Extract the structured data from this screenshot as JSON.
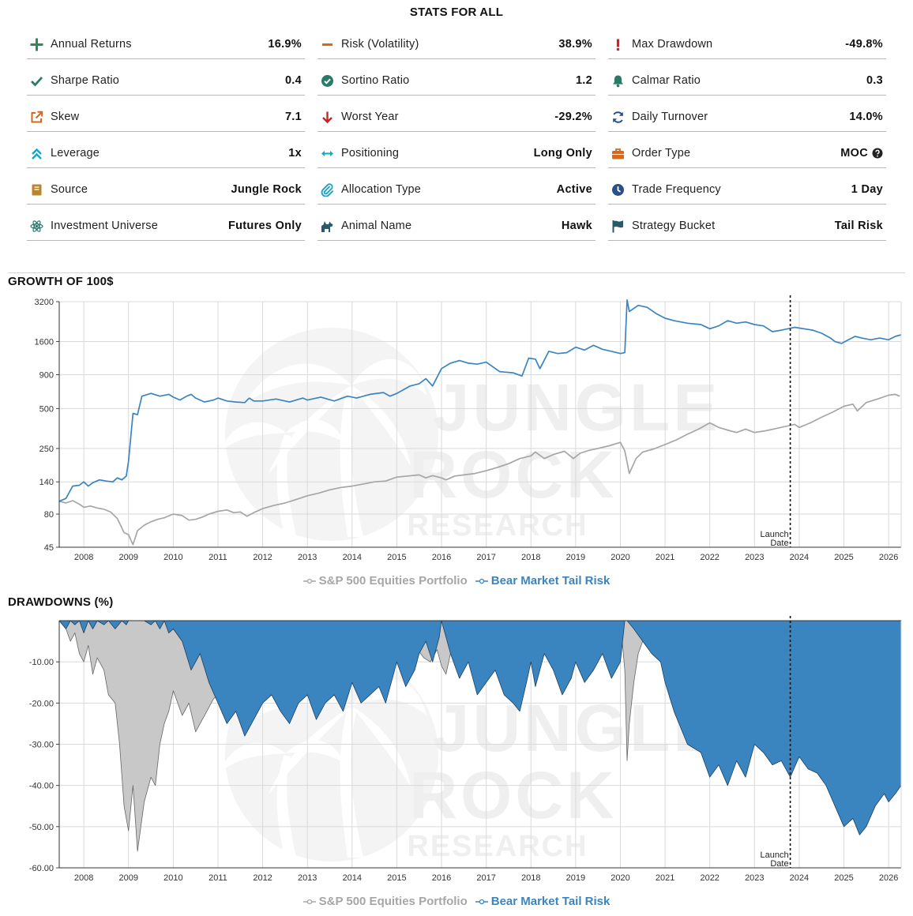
{
  "stats_title": "STATS FOR ALL",
  "stats": [
    {
      "label": "Annual Returns",
      "value": "16.9%",
      "icon": "plus-icon",
      "color": "#2e8b57"
    },
    {
      "label": "Risk (Volatility)",
      "value": "38.9%",
      "icon": "minus-icon",
      "color": "#d2691e"
    },
    {
      "label": "Max Drawdown",
      "value": "-49.8%",
      "icon": "exclamation-icon",
      "color": "#cc2222"
    },
    {
      "label": "Sharpe Ratio",
      "value": "0.4",
      "icon": "checkmark-icon",
      "color": "#2a7a6a"
    },
    {
      "label": "Sortino Ratio",
      "value": "1.2",
      "icon": "check-circle-icon",
      "color": "#2a7a6a"
    },
    {
      "label": "Calmar Ratio",
      "value": "0.3",
      "icon": "bell-icon",
      "color": "#2a7a6a"
    },
    {
      "label": "Skew",
      "value": "7.1",
      "icon": "external-link-icon",
      "color": "#d2691e"
    },
    {
      "label": "Worst Year",
      "value": "-29.2%",
      "icon": "arrow-down-icon",
      "color": "#cc2222"
    },
    {
      "label": "Daily Turnover",
      "value": "14.0%",
      "icon": "refresh-icon",
      "color": "#2b4d8a"
    },
    {
      "label": "Leverage",
      "value": "1x",
      "icon": "double-chevron-up-icon",
      "color": "#1aa3c8"
    },
    {
      "label": "Positioning",
      "value": "Long Only",
      "icon": "horizontal-arrows-icon",
      "color": "#1aa3c8"
    },
    {
      "label": "Order Type",
      "value": "MOC",
      "icon": "briefcase-icon",
      "color": "#d2691e",
      "help": true
    },
    {
      "label": "Source",
      "value": "Jungle Rock",
      "icon": "book-icon",
      "color": "#b8862b"
    },
    {
      "label": "Allocation Type",
      "value": "Active",
      "icon": "paperclip-icon",
      "color": "#1aa3c8"
    },
    {
      "label": "Trade Frequency",
      "value": "1 Day",
      "icon": "clock-icon",
      "color": "#2b4d8a"
    },
    {
      "label": "Investment Universe",
      "value": "Futures Only",
      "icon": "atom-icon",
      "color": "#2a7a6a"
    },
    {
      "label": "Animal Name",
      "value": "Hawk",
      "icon": "animal-icon",
      "color": "#2a5a6a"
    },
    {
      "label": "Strategy Bucket",
      "value": "Tail Risk",
      "icon": "flag-icon",
      "color": "#2a5a6a"
    }
  ],
  "colors": {
    "benchmark": "#a6a6a6",
    "strategy": "#3a85c0",
    "benchmark_fill": "#c8c8c8",
    "strategy_fill": "#3a85c0"
  },
  "watermark": {
    "line1": "JUNGLE",
    "line2": "ROCK",
    "line3": "RESEARCH"
  },
  "chart_data": [
    {
      "type": "line",
      "title": "GROWTH OF 100$",
      "yscale": "log",
      "ylim": [
        45,
        3200
      ],
      "yticks": [
        45,
        80,
        140,
        250,
        500,
        900,
        1600,
        3200
      ],
      "xlim": [
        2007.45,
        2026.28
      ],
      "xticks": [
        "2008",
        "2009",
        "2010",
        "2011",
        "2012",
        "2013",
        "2014",
        "2015",
        "2016",
        "2017",
        "2018",
        "2019",
        "2020",
        "2021",
        "2022",
        "2023",
        "2024",
        "2025",
        "2026"
      ],
      "annotation": {
        "x": 2023.8,
        "label_line1": "Launch",
        "label_line2": "Date"
      },
      "series": [
        {
          "name": "S&P 500 Equities Portfolio",
          "x": [
            2007.45,
            2007.6,
            2007.75,
            2007.9,
            2008.0,
            2008.15,
            2008.3,
            2008.45,
            2008.6,
            2008.75,
            2008.9,
            2009.0,
            2009.1,
            2009.2,
            2009.35,
            2009.5,
            2009.65,
            2009.8,
            2010.0,
            2010.2,
            2010.35,
            2010.5,
            2010.65,
            2010.8,
            2011.0,
            2011.2,
            2011.35,
            2011.5,
            2011.65,
            2011.8,
            2012.0,
            2012.25,
            2012.5,
            2012.75,
            2013.0,
            2013.25,
            2013.5,
            2013.75,
            2014.0,
            2014.25,
            2014.5,
            2014.75,
            2015.0,
            2015.25,
            2015.5,
            2015.65,
            2015.8,
            2016.0,
            2016.1,
            2016.3,
            2016.5,
            2016.75,
            2017.0,
            2017.25,
            2017.5,
            2017.75,
            2018.0,
            2018.1,
            2018.3,
            2018.5,
            2018.75,
            2018.95,
            2019.1,
            2019.3,
            2019.5,
            2019.75,
            2020.0,
            2020.1,
            2020.2,
            2020.35,
            2020.5,
            2020.75,
            2021.0,
            2021.25,
            2021.5,
            2021.75,
            2022.0,
            2022.2,
            2022.45,
            2022.6,
            2022.8,
            2023.0,
            2023.25,
            2023.5,
            2023.75,
            2023.9,
            2024.0,
            2024.25,
            2024.5,
            2024.75,
            2025.0,
            2025.2,
            2025.3,
            2025.5,
            2025.75,
            2026.0,
            2026.15,
            2026.25
          ],
          "values": [
            100,
            97,
            101,
            95,
            90,
            92,
            89,
            87,
            83,
            74,
            58,
            56,
            47,
            60,
            66,
            70,
            73,
            75,
            80,
            78,
            72,
            73,
            76,
            80,
            84,
            86,
            82,
            83,
            77,
            82,
            88,
            93,
            97,
            103,
            110,
            115,
            122,
            127,
            130,
            135,
            140,
            142,
            152,
            155,
            158,
            150,
            156,
            150,
            145,
            155,
            158,
            162,
            170,
            180,
            192,
            210,
            220,
            235,
            210,
            225,
            238,
            210,
            230,
            242,
            250,
            262,
            278,
            240,
            162,
            210,
            235,
            248,
            268,
            290,
            320,
            350,
            390,
            360,
            340,
            330,
            350,
            330,
            340,
            355,
            370,
            380,
            360,
            390,
            430,
            470,
            520,
            540,
            480,
            555,
            590,
            630,
            640,
            620
          ]
        },
        {
          "name": "Bear Market Tail Risk",
          "x": [
            2007.45,
            2007.6,
            2007.75,
            2007.9,
            2008.0,
            2008.1,
            2008.2,
            2008.35,
            2008.5,
            2008.65,
            2008.75,
            2008.85,
            2008.95,
            2009.0,
            2009.1,
            2009.2,
            2009.3,
            2009.5,
            2009.7,
            2009.9,
            2010.0,
            2010.15,
            2010.3,
            2010.4,
            2010.5,
            2010.7,
            2010.9,
            2011.0,
            2011.2,
            2011.4,
            2011.6,
            2011.7,
            2011.8,
            2012.0,
            2012.3,
            2012.6,
            2012.9,
            2013.0,
            2013.3,
            2013.6,
            2013.9,
            2014.1,
            2014.4,
            2014.7,
            2014.85,
            2015.0,
            2015.3,
            2015.5,
            2015.65,
            2015.8,
            2016.0,
            2016.2,
            2016.4,
            2016.6,
            2016.8,
            2017.0,
            2017.3,
            2017.6,
            2017.8,
            2017.95,
            2018.1,
            2018.2,
            2018.4,
            2018.6,
            2018.8,
            2019.0,
            2019.2,
            2019.4,
            2019.6,
            2019.8,
            2020.0,
            2020.1,
            2020.15,
            2020.2,
            2020.4,
            2020.6,
            2020.8,
            2021.0,
            2021.2,
            2021.5,
            2021.8,
            2022.0,
            2022.2,
            2022.4,
            2022.6,
            2022.8,
            2023.0,
            2023.2,
            2023.4,
            2023.6,
            2023.75,
            2023.9,
            2024.1,
            2024.3,
            2024.5,
            2024.7,
            2024.8,
            2024.95,
            2025.1,
            2025.25,
            2025.4,
            2025.6,
            2025.8,
            2026.0,
            2026.15,
            2026.28
          ],
          "values": [
            100,
            105,
            130,
            132,
            140,
            130,
            138,
            145,
            142,
            140,
            150,
            145,
            155,
            200,
            460,
            450,
            620,
            650,
            620,
            640,
            610,
            580,
            620,
            640,
            600,
            560,
            580,
            600,
            570,
            560,
            555,
            600,
            570,
            570,
            590,
            560,
            600,
            580,
            610,
            570,
            620,
            600,
            640,
            660,
            620,
            650,
            740,
            770,
            840,
            740,
            1000,
            1100,
            1150,
            1100,
            1080,
            1120,
            950,
            930,
            880,
            1200,
            1180,
            1000,
            1350,
            1300,
            1320,
            1450,
            1380,
            1500,
            1400,
            1350,
            1300,
            1320,
            3300,
            2700,
            3000,
            2900,
            2600,
            2400,
            2300,
            2200,
            2150,
            2000,
            2100,
            2300,
            2200,
            2250,
            2150,
            2100,
            1900,
            1950,
            2000,
            2050,
            2000,
            1950,
            1850,
            1700,
            1600,
            1550,
            1650,
            1750,
            1700,
            1650,
            1700,
            1650,
            1750,
            1800
          ]
        }
      ]
    },
    {
      "type": "area",
      "title": "DRAWDOWNS (%)",
      "ylim": [
        -60,
        0
      ],
      "yticks": [
        "-60.00",
        "-50.00",
        "-40.00",
        "-30.00",
        "-20.00",
        "-10.00"
      ],
      "xlim": [
        2007.45,
        2026.28
      ],
      "xticks": [
        "2008",
        "2009",
        "2010",
        "2011",
        "2012",
        "2013",
        "2014",
        "2015",
        "2016",
        "2017",
        "2018",
        "2019",
        "2020",
        "2021",
        "2022",
        "2023",
        "2024",
        "2025",
        "2026"
      ],
      "annotation": {
        "x": 2023.8,
        "label_line1": "Launch",
        "label_line2": "Date"
      },
      "series": [
        {
          "name": "S&P 500 Equities Portfolio",
          "x": [
            2007.45,
            2007.6,
            2007.7,
            2007.8,
            2007.9,
            2008.0,
            2008.1,
            2008.2,
            2008.3,
            2008.45,
            2008.55,
            2008.7,
            2008.8,
            2008.9,
            2009.0,
            2009.1,
            2009.2,
            2009.35,
            2009.5,
            2009.6,
            2009.7,
            2009.8,
            2009.9,
            2010.0,
            2010.2,
            2010.35,
            2010.5,
            2010.6,
            2010.75,
            2010.9,
            2011.0,
            2011.2,
            2011.35,
            2011.5,
            2011.6,
            2011.7,
            2011.8,
            2012.0,
            2012.5,
            2014.0,
            2015.0,
            2015.2,
            2015.4,
            2015.6,
            2015.75,
            2015.9,
            2016.0,
            2016.1,
            2016.2,
            2016.3,
            2016.5,
            2018.0,
            2018.1,
            2018.25,
            2018.4,
            2018.55,
            2018.7,
            2018.8,
            2018.9,
            2019.0,
            2019.2,
            2020.0,
            2020.1,
            2020.15,
            2020.2,
            2020.3,
            2020.4,
            2020.6,
            2022.0,
            2022.2,
            2022.4,
            2022.6,
            2022.8,
            2023.0,
            2023.3,
            2023.6,
            2023.9,
            2024.2,
            2026.0,
            2026.15,
            2026.28
          ],
          "values": [
            0,
            -2,
            -5,
            -3,
            -8,
            -10,
            -6,
            -13,
            -9,
            -12,
            -18,
            -20,
            -30,
            -45,
            -51,
            -40,
            -56,
            -44,
            -38,
            -40,
            -30,
            -25,
            -22,
            -17,
            -23,
            -20,
            -27,
            -25,
            -22,
            -19,
            -18,
            -15,
            -10,
            -7,
            -12,
            -16,
            -18,
            -10,
            -5,
            0,
            -1,
            -3,
            -6,
            -9,
            -10,
            -7,
            -11,
            -13,
            -8,
            -5,
            0,
            0,
            -8,
            -4,
            -2,
            -6,
            -4,
            -8,
            -14,
            -9,
            -3,
            0,
            -12,
            -34,
            -25,
            -15,
            -8,
            -2,
            0,
            -6,
            -15,
            -22,
            -25,
            -18,
            -14,
            -9,
            -5,
            0,
            0,
            -2,
            0
          ]
        },
        {
          "name": "Bear Market Tail Risk",
          "x": [
            2007.45,
            2007.6,
            2007.7,
            2007.8,
            2007.9,
            2008.0,
            2008.1,
            2008.2,
            2008.3,
            2008.45,
            2008.55,
            2008.7,
            2008.85,
            2008.95,
            2009.0,
            2009.1,
            2009.2,
            2009.35,
            2009.5,
            2009.6,
            2009.7,
            2009.8,
            2009.9,
            2010.0,
            2010.2,
            2010.4,
            2010.6,
            2010.8,
            2011.0,
            2011.2,
            2011.4,
            2011.6,
            2011.8,
            2012.0,
            2012.2,
            2012.4,
            2012.6,
            2012.8,
            2013.0,
            2013.2,
            2013.4,
            2013.6,
            2013.8,
            2014.0,
            2014.2,
            2014.4,
            2014.6,
            2014.75,
            2014.9,
            2015.0,
            2015.2,
            2015.4,
            2015.5,
            2015.65,
            2015.8,
            2015.95,
            2016.0,
            2016.2,
            2016.4,
            2016.6,
            2016.8,
            2017.0,
            2017.2,
            2017.4,
            2017.6,
            2017.75,
            2017.9,
            2018.0,
            2018.1,
            2018.3,
            2018.5,
            2018.7,
            2018.9,
            2019.0,
            2019.2,
            2019.4,
            2019.6,
            2019.8,
            2019.9,
            2020.0,
            2020.1,
            2020.15,
            2020.3,
            2020.5,
            2020.7,
            2020.9,
            2021.0,
            2021.2,
            2021.5,
            2021.8,
            2022.0,
            2022.2,
            2022.4,
            2022.6,
            2022.8,
            2023.0,
            2023.2,
            2023.4,
            2023.6,
            2023.8,
            2024.0,
            2024.2,
            2024.4,
            2024.6,
            2024.8,
            2025.0,
            2025.2,
            2025.35,
            2025.5,
            2025.7,
            2025.9,
            2026.0,
            2026.15,
            2026.28
          ],
          "values": [
            0,
            -2,
            0,
            -1,
            0,
            -3,
            0,
            -2,
            0,
            -1,
            0,
            -2,
            0,
            -1,
            0,
            0,
            0,
            0,
            -1,
            0,
            -2,
            0,
            -3,
            -2,
            -5,
            -12,
            -8,
            -15,
            -20,
            -25,
            -22,
            -28,
            -24,
            -20,
            -18,
            -22,
            -25,
            -20,
            -18,
            -24,
            -20,
            -18,
            -22,
            -15,
            -20,
            -18,
            -16,
            -20,
            -14,
            -10,
            -16,
            -12,
            -8,
            -5,
            -10,
            -4,
            0,
            -8,
            -14,
            -10,
            -18,
            -15,
            -12,
            -18,
            -20,
            -22,
            -15,
            -10,
            -16,
            -8,
            -12,
            -18,
            -14,
            -10,
            -15,
            -12,
            -8,
            -14,
            -12,
            -10,
            0,
            0,
            -2,
            -5,
            -8,
            -10,
            -15,
            -22,
            -30,
            -32,
            -38,
            -35,
            -40,
            -34,
            -38,
            -30,
            -32,
            -35,
            -34,
            -38,
            -33,
            -36,
            -37,
            -40,
            -45,
            -50,
            -48,
            -52,
            -50,
            -45,
            -42,
            -44,
            -42,
            -40
          ]
        }
      ]
    }
  ]
}
